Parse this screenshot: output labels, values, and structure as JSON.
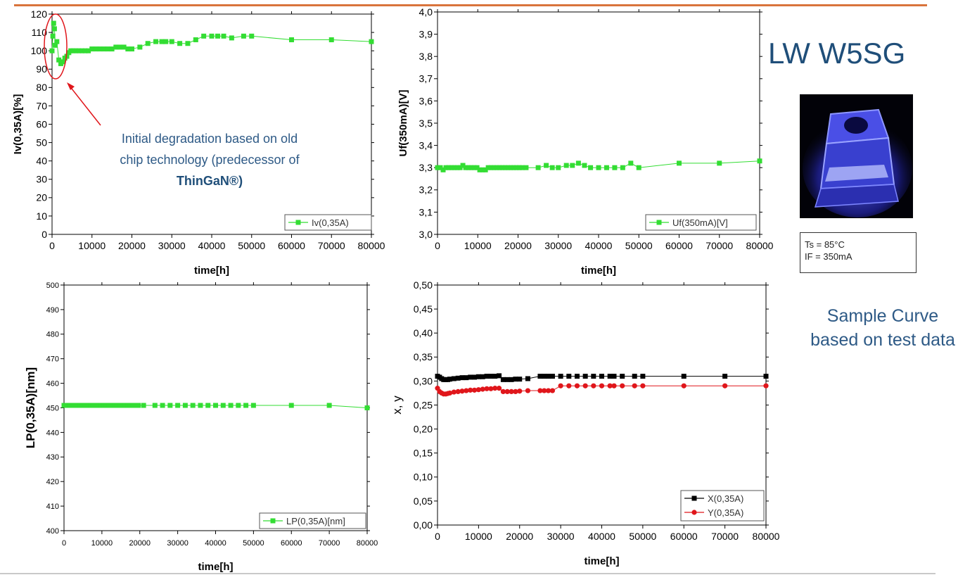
{
  "header": {
    "title": "LW W5SG",
    "conditions": [
      "Ts = 85°C",
      "IF = 350mA"
    ],
    "note_line1": "Sample Curve",
    "note_line2": "based on test data"
  },
  "annotation": {
    "line1": "Initial degradation based on old",
    "line2": "chip technology (predecessor of",
    "line3": "ThinGaN®)"
  },
  "colors": {
    "green": "#33dd33",
    "black": "#000000",
    "red": "#e0161b",
    "accent": "#1f4e79",
    "rule": "#d9743c"
  },
  "chart_data": [
    {
      "id": "iv",
      "type": "line",
      "xlabel": "time[h]",
      "ylabel": "Iv(0,35A)[%]",
      "xlim": [
        0,
        80000
      ],
      "ylim": [
        0,
        120
      ],
      "xticks": [
        0,
        10000,
        20000,
        30000,
        40000,
        50000,
        60000,
        70000,
        80000
      ],
      "yticks": [
        0,
        10,
        20,
        30,
        40,
        50,
        60,
        70,
        80,
        90,
        100,
        110,
        120
      ],
      "legend_position": "bottom-right",
      "series": [
        {
          "name": "Iv(0,35A)",
          "color": "#33dd33",
          "marker": "square",
          "x": [
            0,
            200,
            400,
            600,
            800,
            1200,
            1700,
            2200,
            2700,
            3200,
            3700,
            4200,
            4700,
            5300,
            6000,
            6700,
            7500,
            8300,
            9100,
            10000,
            11000,
            12000,
            13000,
            14000,
            15000,
            16000,
            17000,
            18000,
            19000,
            20000,
            22000,
            24000,
            26000,
            27500,
            28500,
            30000,
            32000,
            34000,
            36000,
            38000,
            40000,
            41500,
            43000,
            45000,
            48000,
            50000,
            60000,
            70000,
            80000
          ],
          "y": [
            100,
            108,
            115,
            112,
            103,
            105,
            95,
            93,
            94,
            96,
            97,
            99,
            100,
            100,
            100,
            100,
            100,
            100,
            100,
            101,
            101,
            101,
            101,
            101,
            101,
            102,
            102,
            102,
            101,
            101,
            102,
            104,
            105,
            105,
            105,
            105,
            104,
            104,
            106,
            108,
            108,
            108,
            108,
            107,
            108,
            108,
            106,
            106,
            105
          ]
        }
      ]
    },
    {
      "id": "uf",
      "type": "line",
      "xlabel": "time[h]",
      "ylabel": "Uf(350mA)[V]",
      "xlim": [
        0,
        80000
      ],
      "ylim": [
        3.0,
        4.0
      ],
      "xticks": [
        0,
        10000,
        20000,
        30000,
        40000,
        50000,
        60000,
        70000,
        80000
      ],
      "yticks": [
        "3,0",
        "3,1",
        "3,2",
        "3,3",
        "3,4",
        "3,5",
        "3,6",
        "3,7",
        "3,8",
        "3,9",
        "4,0"
      ],
      "legend_position": "bottom-right",
      "series": [
        {
          "name": "Uf(350mA)[V]",
          "color": "#33dd33",
          "marker": "square",
          "x": [
            0,
            700,
            1400,
            2100,
            2800,
            3500,
            4200,
            4900,
            5600,
            6300,
            7000,
            7700,
            8400,
            9100,
            9800,
            10500,
            11200,
            11900,
            12600,
            13300,
            14000,
            14700,
            15400,
            16100,
            16800,
            17500,
            18200,
            18900,
            19600,
            20300,
            21000,
            22000,
            25000,
            27000,
            28500,
            30000,
            32000,
            33500,
            35000,
            36500,
            38000,
            40000,
            42000,
            44000,
            46000,
            48000,
            50000,
            60000,
            70000,
            80000
          ],
          "y": [
            3.3,
            3.3,
            3.29,
            3.3,
            3.3,
            3.3,
            3.3,
            3.3,
            3.3,
            3.31,
            3.3,
            3.3,
            3.3,
            3.3,
            3.3,
            3.29,
            3.29,
            3.29,
            3.3,
            3.3,
            3.3,
            3.3,
            3.3,
            3.3,
            3.3,
            3.3,
            3.3,
            3.3,
            3.3,
            3.3,
            3.3,
            3.3,
            3.3,
            3.31,
            3.3,
            3.3,
            3.31,
            3.31,
            3.32,
            3.31,
            3.3,
            3.3,
            3.3,
            3.3,
            3.3,
            3.32,
            3.3,
            3.32,
            3.32,
            3.33
          ]
        }
      ]
    },
    {
      "id": "lp",
      "type": "line",
      "xlabel": "time[h]",
      "ylabel": "LP(0,35A)[nm]",
      "xlim": [
        0,
        80000
      ],
      "ylim": [
        400,
        500
      ],
      "xticks": [
        0,
        10000,
        20000,
        30000,
        40000,
        50000,
        60000,
        70000,
        80000
      ],
      "yticks": [
        400,
        410,
        420,
        430,
        440,
        450,
        460,
        470,
        480,
        490,
        500
      ],
      "legend_position": "bottom-right",
      "series": [
        {
          "name": "LP(0,35A)[nm]",
          "color": "#33dd33",
          "marker": "square",
          "x": [
            0,
            700,
            1400,
            2100,
            2800,
            3500,
            4200,
            4900,
            5600,
            6300,
            7000,
            7700,
            8400,
            9100,
            9800,
            10500,
            11200,
            11900,
            12600,
            13300,
            14000,
            14700,
            15400,
            16100,
            16800,
            17500,
            18200,
            18900,
            19600,
            21000,
            24000,
            26000,
            28000,
            30000,
            32000,
            34000,
            36000,
            38000,
            40000,
            42000,
            44000,
            46000,
            48000,
            50000,
            60000,
            70000,
            80000
          ],
          "y": [
            451,
            451,
            451,
            451,
            451,
            451,
            451,
            451,
            451,
            451,
            451,
            451,
            451,
            451,
            451,
            451,
            451,
            451,
            451,
            451,
            451,
            451,
            451,
            451,
            451,
            451,
            451,
            451,
            451,
            451,
            451,
            451,
            451,
            451,
            451,
            451,
            451,
            451,
            451,
            451,
            451,
            451,
            451,
            451,
            451,
            451,
            450
          ]
        }
      ]
    },
    {
      "id": "xy",
      "type": "line",
      "xlabel": "time[h]",
      "ylabel": "x, y",
      "xlim": [
        0,
        80000
      ],
      "ylim": [
        0,
        0.5
      ],
      "xticks": [
        0,
        10000,
        20000,
        30000,
        40000,
        50000,
        60000,
        70000,
        80000
      ],
      "yticks": [
        "0,00",
        "0,05",
        "0,10",
        "0,15",
        "0,20",
        "0,25",
        "0,30",
        "0,35",
        "0,40",
        "0,45",
        "0,50"
      ],
      "legend_position": "bottom-right",
      "series": [
        {
          "name": "X(0,35A)",
          "color": "#000000",
          "marker": "square",
          "x": [
            0,
            500,
            1000,
            1500,
            2000,
            2500,
            3000,
            4000,
            5000,
            6000,
            7000,
            8000,
            9000,
            10000,
            11000,
            12000,
            13000,
            14000,
            15000,
            16000,
            17000,
            18000,
            19000,
            20000,
            22000,
            25000,
            26000,
            27000,
            28000,
            30000,
            32000,
            34000,
            36000,
            38000,
            40000,
            42000,
            43000,
            45000,
            48000,
            50000,
            60000,
            70000,
            80000
          ],
          "y": [
            0.31,
            0.308,
            0.305,
            0.303,
            0.303,
            0.303,
            0.304,
            0.305,
            0.306,
            0.307,
            0.307,
            0.308,
            0.308,
            0.309,
            0.309,
            0.31,
            0.31,
            0.31,
            0.311,
            0.303,
            0.303,
            0.303,
            0.304,
            0.304,
            0.305,
            0.31,
            0.31,
            0.31,
            0.31,
            0.31,
            0.31,
            0.31,
            0.31,
            0.31,
            0.31,
            0.31,
            0.31,
            0.31,
            0.31,
            0.31,
            0.31,
            0.31,
            0.31
          ]
        },
        {
          "name": "Y(0,35A)",
          "color": "#e0161b",
          "marker": "circle",
          "x": [
            0,
            500,
            1000,
            1500,
            2000,
            2500,
            3000,
            4000,
            5000,
            6000,
            7000,
            8000,
            9000,
            10000,
            11000,
            12000,
            13000,
            14000,
            15000,
            16000,
            17000,
            18000,
            19000,
            20000,
            22000,
            25000,
            26000,
            27000,
            28000,
            30000,
            32000,
            34000,
            36000,
            38000,
            40000,
            42000,
            43000,
            45000,
            48000,
            50000,
            60000,
            70000,
            80000
          ],
          "y": [
            0.285,
            0.278,
            0.275,
            0.273,
            0.273,
            0.274,
            0.275,
            0.277,
            0.278,
            0.279,
            0.28,
            0.281,
            0.281,
            0.282,
            0.283,
            0.284,
            0.284,
            0.285,
            0.285,
            0.278,
            0.278,
            0.278,
            0.278,
            0.279,
            0.28,
            0.28,
            0.28,
            0.28,
            0.28,
            0.29,
            0.29,
            0.29,
            0.29,
            0.29,
            0.29,
            0.29,
            0.29,
            0.29,
            0.29,
            0.29,
            0.29,
            0.29,
            0.29
          ]
        }
      ]
    }
  ]
}
